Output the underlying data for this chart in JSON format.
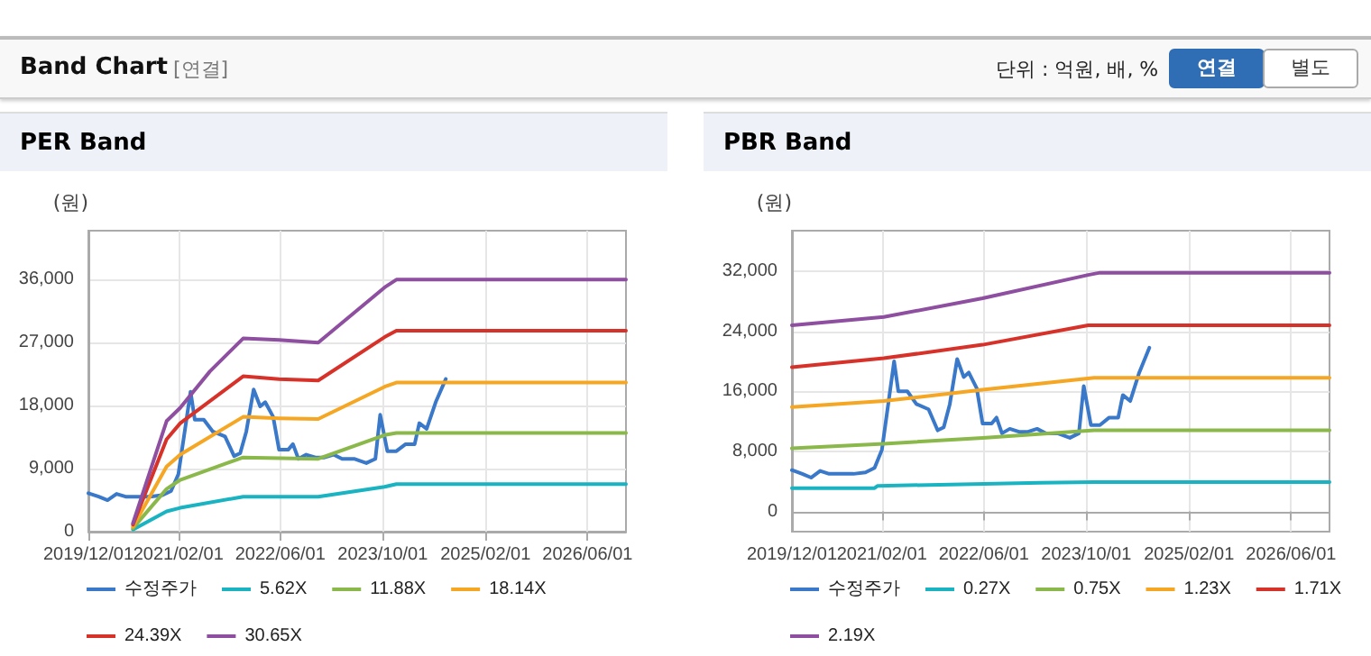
{
  "chart_data": [
    {
      "type": "other",
      "title": "Band Chart",
      "annotations": [
        "[연결]",
        "단위 : 억원, 배, %",
        "연결",
        "별도"
      ]
    },
    {
      "type": "line",
      "title": "PER Band",
      "ylabel": "(원)",
      "legend": "bottom",
      "grid": true,
      "marker": "none",
      "line_style": "solid",
      "xlim": [
        "2019-12-01",
        "2026-12-01"
      ],
      "ylim": [
        0,
        43000
      ],
      "xticks": [
        {
          "value": "2019-12-01",
          "label": "2019/12/01"
        },
        {
          "value": "2021-02-01",
          "label": "2021/02/01"
        },
        {
          "value": "2022-06-01",
          "label": "2022/06/01"
        },
        {
          "value": "2023-10-01",
          "label": "2023/10/01"
        },
        {
          "value": "2025-02-01",
          "label": "2025/02/01"
        },
        {
          "value": "2026-06-01",
          "label": "2026/06/01"
        }
      ],
      "yticks": [
        {
          "value": 0,
          "label": "0"
        },
        {
          "value": 9000,
          "label": "9,000"
        },
        {
          "value": 18000,
          "label": "18,000"
        },
        {
          "value": 27000,
          "label": "27,000"
        },
        {
          "value": 36000,
          "label": "36,000"
        }
      ],
      "series": [
        {
          "name": "수정주가",
          "color": "#3a78c9",
          "x": [
            "2019-12-01",
            "2020-01-19",
            "2020-03-01",
            "2020-04-13",
            "2020-05-26",
            "2020-09-19",
            "2020-11-15",
            "2020-12-28",
            "2021-02-01",
            "2021-03-03",
            "2021-03-31",
            "2021-04-20",
            "2021-06-02",
            "2021-07-15",
            "2021-09-11",
            "2021-10-24",
            "2021-11-22",
            "2021-12-21",
            "2022-01-25",
            "2022-02-25",
            "2022-03-21",
            "2022-04-28",
            "2022-05-26",
            "2022-07-08",
            "2022-07-31",
            "2022-08-26",
            "2022-10-02",
            "2022-11-15",
            "2022-12-28",
            "2023-02-09",
            "2023-03-22",
            "2023-05-18",
            "2023-07-15",
            "2023-08-27",
            "2023-09-19",
            "2023-10-23",
            "2023-12-05",
            "2024-01-18",
            "2024-03-01",
            "2024-03-23",
            "2024-04-27",
            "2024-06-09",
            "2024-07-27"
          ],
          "values": [
            5500,
            5000,
            4500,
            5400,
            5000,
            5000,
            5200,
            5800,
            8200,
            14300,
            20000,
            16000,
            16000,
            14300,
            13600,
            10800,
            11200,
            14300,
            20300,
            17900,
            18500,
            16400,
            11700,
            11700,
            12500,
            10400,
            11000,
            10600,
            10600,
            11000,
            10400,
            10400,
            9800,
            10400,
            16700,
            11500,
            11500,
            12500,
            12500,
            15500,
            14700,
            18500,
            21800
          ]
        },
        {
          "name": "5.62X",
          "color": "#1ab3c2",
          "x": [
            "2020-06-30",
            "2020-12-07",
            "2021-02-10",
            "2021-12-06",
            "2022-11-28",
            "2023-10-10",
            "2023-12-05",
            "2026-12-01"
          ],
          "values": [
            300,
            2900,
            3400,
            5000,
            5000,
            6400,
            6800,
            6800
          ]
        },
        {
          "name": "11.88X",
          "color": "#8bb84a",
          "x": [
            "2020-06-30",
            "2020-12-07",
            "2021-02-10",
            "2021-12-06",
            "2022-11-28",
            "2023-10-10",
            "2023-12-05",
            "2026-12-01"
          ],
          "values": [
            500,
            6100,
            7400,
            10600,
            10400,
            13800,
            14100,
            14100
          ]
        },
        {
          "name": "18.14X",
          "color": "#f5a623",
          "x": [
            "2020-06-30",
            "2020-12-07",
            "2021-02-10",
            "2021-12-06",
            "2022-05-26",
            "2022-11-28",
            "2023-10-10",
            "2023-12-05",
            "2026-12-01"
          ],
          "values": [
            700,
            9300,
            11000,
            16400,
            16200,
            16100,
            20700,
            21300,
            21300
          ]
        },
        {
          "name": "24.39X",
          "color": "#d7322a",
          "x": [
            "2020-06-30",
            "2020-12-07",
            "2021-02-10",
            "2021-12-06",
            "2022-05-26",
            "2022-11-28",
            "2023-10-10",
            "2023-12-05",
            "2026-12-01"
          ],
          "values": [
            1000,
            13200,
            15500,
            22200,
            21800,
            21600,
            27800,
            28700,
            28700
          ]
        },
        {
          "name": "30.65X",
          "color": "#8e4fa0",
          "x": [
            "2020-06-30",
            "2020-12-07",
            "2021-02-10",
            "2021-07-01",
            "2021-12-06",
            "2022-05-26",
            "2022-11-28",
            "2023-10-10",
            "2023-12-05",
            "2026-12-01"
          ],
          "values": [
            1200,
            15800,
            17700,
            22900,
            27600,
            27400,
            27000,
            34900,
            36000,
            36000
          ]
        }
      ]
    },
    {
      "type": "line",
      "title": "PBR Band",
      "ylabel": "(원)",
      "legend": "bottom",
      "grid": true,
      "marker": "none",
      "line_style": "solid",
      "xlim": [
        "2019-12-01",
        "2026-12-01"
      ],
      "ylim": [
        -2700,
        37400
      ],
      "xticks": [
        {
          "value": "2019-12-01",
          "label": "2019/12/01"
        },
        {
          "value": "2021-02-01",
          "label": "2021/02/01"
        },
        {
          "value": "2022-06-01",
          "label": "2022/06/01"
        },
        {
          "value": "2023-10-01",
          "label": "2023/10/01"
        },
        {
          "value": "2025-02-01",
          "label": "2025/02/01"
        },
        {
          "value": "2026-06-01",
          "label": "2026/06/01"
        }
      ],
      "yticks": [
        {
          "value": 0,
          "label": "0"
        },
        {
          "value": 8000,
          "label": "8,000"
        },
        {
          "value": 16000,
          "label": "16,000"
        },
        {
          "value": 24000,
          "label": "24,000"
        },
        {
          "value": 32000,
          "label": "32,000"
        }
      ],
      "series": [
        {
          "name": "수정주가",
          "color": "#3a78c9",
          "x": [
            "2019-12-01",
            "2020-01-19",
            "2020-03-01",
            "2020-04-13",
            "2020-05-26",
            "2020-09-19",
            "2020-11-15",
            "2020-12-28",
            "2021-02-01",
            "2021-03-03",
            "2021-03-31",
            "2021-04-20",
            "2021-06-02",
            "2021-07-15",
            "2021-09-11",
            "2021-10-24",
            "2021-11-22",
            "2021-12-21",
            "2022-01-25",
            "2022-02-25",
            "2022-03-21",
            "2022-04-28",
            "2022-05-26",
            "2022-07-08",
            "2022-07-31",
            "2022-08-26",
            "2022-10-02",
            "2022-11-15",
            "2022-12-28",
            "2023-02-09",
            "2023-03-22",
            "2023-05-18",
            "2023-07-15",
            "2023-08-27",
            "2023-09-19",
            "2023-10-23",
            "2023-12-05",
            "2024-01-18",
            "2024-03-01",
            "2024-03-23",
            "2024-04-27",
            "2024-06-09",
            "2024-07-27"
          ],
          "values": [
            5500,
            5000,
            4500,
            5400,
            5000,
            5000,
            5200,
            5800,
            8200,
            14300,
            20000,
            16000,
            16000,
            14300,
            13600,
            10800,
            11200,
            14300,
            20300,
            17900,
            18500,
            16400,
            11700,
            11700,
            12500,
            10400,
            11000,
            10600,
            10600,
            11000,
            10400,
            10400,
            9800,
            10400,
            16700,
            11500,
            11500,
            12500,
            12500,
            15500,
            14700,
            18500,
            21800
          ]
        },
        {
          "name": "0.27X",
          "color": "#1ab3c2",
          "x": [
            "2019-12-01",
            "2020-12-28",
            "2021-01-12",
            "2023-02-24",
            "2023-11-07",
            "2026-12-01"
          ],
          "values": [
            3100,
            3100,
            3400,
            3800,
            3900,
            3900
          ]
        },
        {
          "name": "0.75X",
          "color": "#8bb84a",
          "x": [
            "2019-12-01",
            "2021-02-10",
            "2022-05-26",
            "2023-11-07",
            "2026-12-01"
          ],
          "values": [
            8400,
            9000,
            9800,
            10800,
            10800
          ]
        },
        {
          "name": "1.23X",
          "color": "#f5a623",
          "x": [
            "2019-12-01",
            "2021-02-10",
            "2022-05-26",
            "2023-11-07",
            "2026-12-01"
          ],
          "values": [
            13900,
            14700,
            16200,
            17800,
            17800
          ]
        },
        {
          "name": "1.71X",
          "color": "#d7322a",
          "x": [
            "2019-12-01",
            "2021-02-10",
            "2022-05-26",
            "2023-10-10",
            "2023-12-05",
            "2026-12-01"
          ],
          "values": [
            19200,
            20400,
            22200,
            24800,
            24800,
            24800
          ]
        },
        {
          "name": "2.19X",
          "color": "#8e4fa0",
          "x": [
            "2019-12-01",
            "2021-02-10",
            "2022-05-26",
            "2023-10-10",
            "2023-12-05",
            "2026-12-01"
          ],
          "values": [
            24800,
            25900,
            28400,
            31500,
            31800,
            31800
          ]
        }
      ]
    }
  ]
}
